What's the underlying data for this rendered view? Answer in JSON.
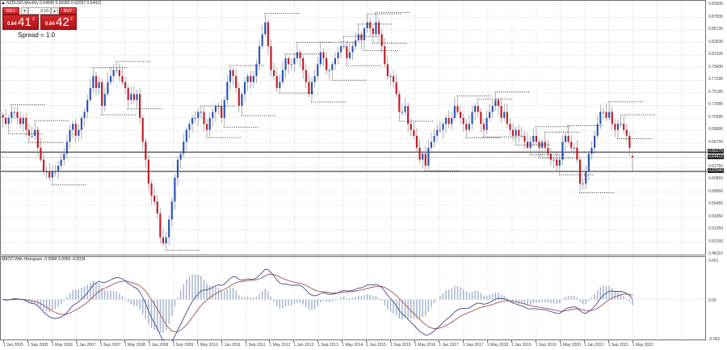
{
  "header": {
    "symbol_line": "NZDUSD,Monthly  0.64645 0.65080 0.62057 0.64412"
  },
  "trade_panel": {
    "sell_label": "SELL",
    "buy_label": "BUY",
    "lot_value": "0.10",
    "lot_dec_icon": "▾",
    "lot_inc_icon": "▴",
    "sell_prefix": "0.64",
    "sell_big": "41",
    "sell_sup": "2",
    "buy_prefix": "0.64",
    "buy_big": "42",
    "buy_sup": "2",
    "spread_text": "Spread = 1.0"
  },
  "indicator": {
    "title": "MACD With Histogram -0.0084 0.0050 -0.0034"
  },
  "colors": {
    "bull": "#2a52b8",
    "bear": "#c41a26",
    "wick": "#8c8c8c",
    "grid": "#c8c8c8",
    "macd_line": "#3c4a8c",
    "signal_line": "#a05050",
    "histogram": "#9fb0cc",
    "hline": "#333333",
    "fractal": "#333333"
  },
  "chart_data": [
    {
      "type": "candlestick",
      "title": "NZDUSD,Monthly",
      "xlabel": "",
      "ylabel": "Price",
      "ylim": [
        0.4811,
        0.8993
      ],
      "grid": true,
      "price_axis_labels": [
        "0.89930",
        "0.87830",
        "0.85730",
        "0.83630",
        "0.81530",
        "0.79430",
        "0.77290",
        "0.75190",
        "0.73090",
        "0.70990",
        "0.68890",
        "0.66790",
        "0.62750",
        "0.60650",
        "0.58550",
        "0.56450",
        "0.54350",
        "0.52250",
        "0.50150",
        "0.48110"
      ],
      "highlighted_levels": [
        {
          "label": "0.65270",
          "value": 0.6527,
          "type": "horizontal-line"
        },
        {
          "label": "0.64412",
          "value": 0.64412,
          "type": "current-price"
        },
        {
          "label": "0.62040",
          "value": 0.6204,
          "type": "horizontal-line"
        }
      ],
      "date_axis_labels": [
        "1 Jan 2005",
        "1 Sep 2005",
        "1 May 2006",
        "1 Jan 2007",
        "1 Sep 2007",
        "1 May 2008",
        "1 Jan 2009",
        "1 Sep 2009",
        "1 May 2010",
        "1 Jan 2011",
        "1 Sep 2011",
        "1 May 2012",
        "1 Jan 2013",
        "1 Sep 2013",
        "1 May 2014",
        "1 Jan 2015",
        "1 Sep 2015",
        "1 May 2016",
        "1 Jan 2017",
        "1 Sep 2017",
        "1 May 2018",
        "1 Jan 2019",
        "1 Sep 2019",
        "1 May 2020",
        "1 Jan 2021",
        "1 Sep 2021",
        "1 May 2022"
      ],
      "last_bar": {
        "open": 0.64645,
        "high": 0.6508,
        "low": 0.62057,
        "close": 0.64412
      },
      "closes_approx": [
        0.71,
        0.7,
        0.71,
        0.72,
        0.72,
        0.71,
        0.7,
        0.71,
        0.69,
        0.68,
        0.68,
        0.69,
        0.66,
        0.64,
        0.62,
        0.62,
        0.61,
        0.62,
        0.62,
        0.63,
        0.64,
        0.65,
        0.67,
        0.69,
        0.7,
        0.68,
        0.69,
        0.71,
        0.72,
        0.74,
        0.76,
        0.78,
        0.76,
        0.77,
        0.73,
        0.75,
        0.77,
        0.78,
        0.79,
        0.79,
        0.78,
        0.77,
        0.76,
        0.74,
        0.75,
        0.74,
        0.75,
        0.71,
        0.67,
        0.64,
        0.6,
        0.58,
        0.57,
        0.55,
        0.51,
        0.5,
        0.51,
        0.54,
        0.57,
        0.61,
        0.64,
        0.65,
        0.67,
        0.69,
        0.7,
        0.71,
        0.71,
        0.72,
        0.72,
        0.7,
        0.69,
        0.71,
        0.72,
        0.73,
        0.73,
        0.71,
        0.74,
        0.77,
        0.79,
        0.78,
        0.76,
        0.73,
        0.75,
        0.77,
        0.78,
        0.77,
        0.78,
        0.8,
        0.83,
        0.85,
        0.87,
        0.83,
        0.79,
        0.78,
        0.76,
        0.77,
        0.79,
        0.81,
        0.8,
        0.8,
        0.81,
        0.82,
        0.81,
        0.79,
        0.77,
        0.75,
        0.77,
        0.78,
        0.8,
        0.82,
        0.81,
        0.79,
        0.79,
        0.8,
        0.81,
        0.82,
        0.83,
        0.83,
        0.81,
        0.82,
        0.83,
        0.84,
        0.85,
        0.84,
        0.86,
        0.87,
        0.86,
        0.85,
        0.87,
        0.85,
        0.83,
        0.8,
        0.78,
        0.78,
        0.77,
        0.75,
        0.72,
        0.72,
        0.73,
        0.7,
        0.69,
        0.68,
        0.66,
        0.64,
        0.65,
        0.63,
        0.66,
        0.67,
        0.68,
        0.69,
        0.69,
        0.7,
        0.71,
        0.7,
        0.71,
        0.73,
        0.72,
        0.71,
        0.7,
        0.69,
        0.7,
        0.72,
        0.73,
        0.72,
        0.7,
        0.69,
        0.71,
        0.72,
        0.73,
        0.74,
        0.73,
        0.71,
        0.72,
        0.7,
        0.69,
        0.68,
        0.69,
        0.68,
        0.68,
        0.67,
        0.66,
        0.67,
        0.68,
        0.67,
        0.66,
        0.67,
        0.66,
        0.65,
        0.64,
        0.64,
        0.63,
        0.64,
        0.67,
        0.68,
        0.67,
        0.66,
        0.66,
        0.64,
        0.6,
        0.6,
        0.62,
        0.65,
        0.66,
        0.68,
        0.7,
        0.72,
        0.72,
        0.71,
        0.72,
        0.7,
        0.69,
        0.7,
        0.7,
        0.69,
        0.68,
        0.66,
        0.64
      ],
      "series": []
    },
    {
      "type": "line",
      "title": "MACD With Histogram",
      "ylim": [
        -0.052,
        0.051
      ],
      "axis_labels": [
        "0.051",
        "0.00",
        "-0.052"
      ],
      "series": [
        {
          "name": "MACD",
          "values_note": "main line, dark blue"
        },
        {
          "name": "Signal",
          "values_note": "signal line, brownish red"
        },
        {
          "name": "Histogram",
          "values_note": "light blue bars"
        }
      ],
      "current_values": {
        "macd": -0.0084,
        "signal": 0.005,
        "histogram": -0.0034
      }
    }
  ]
}
